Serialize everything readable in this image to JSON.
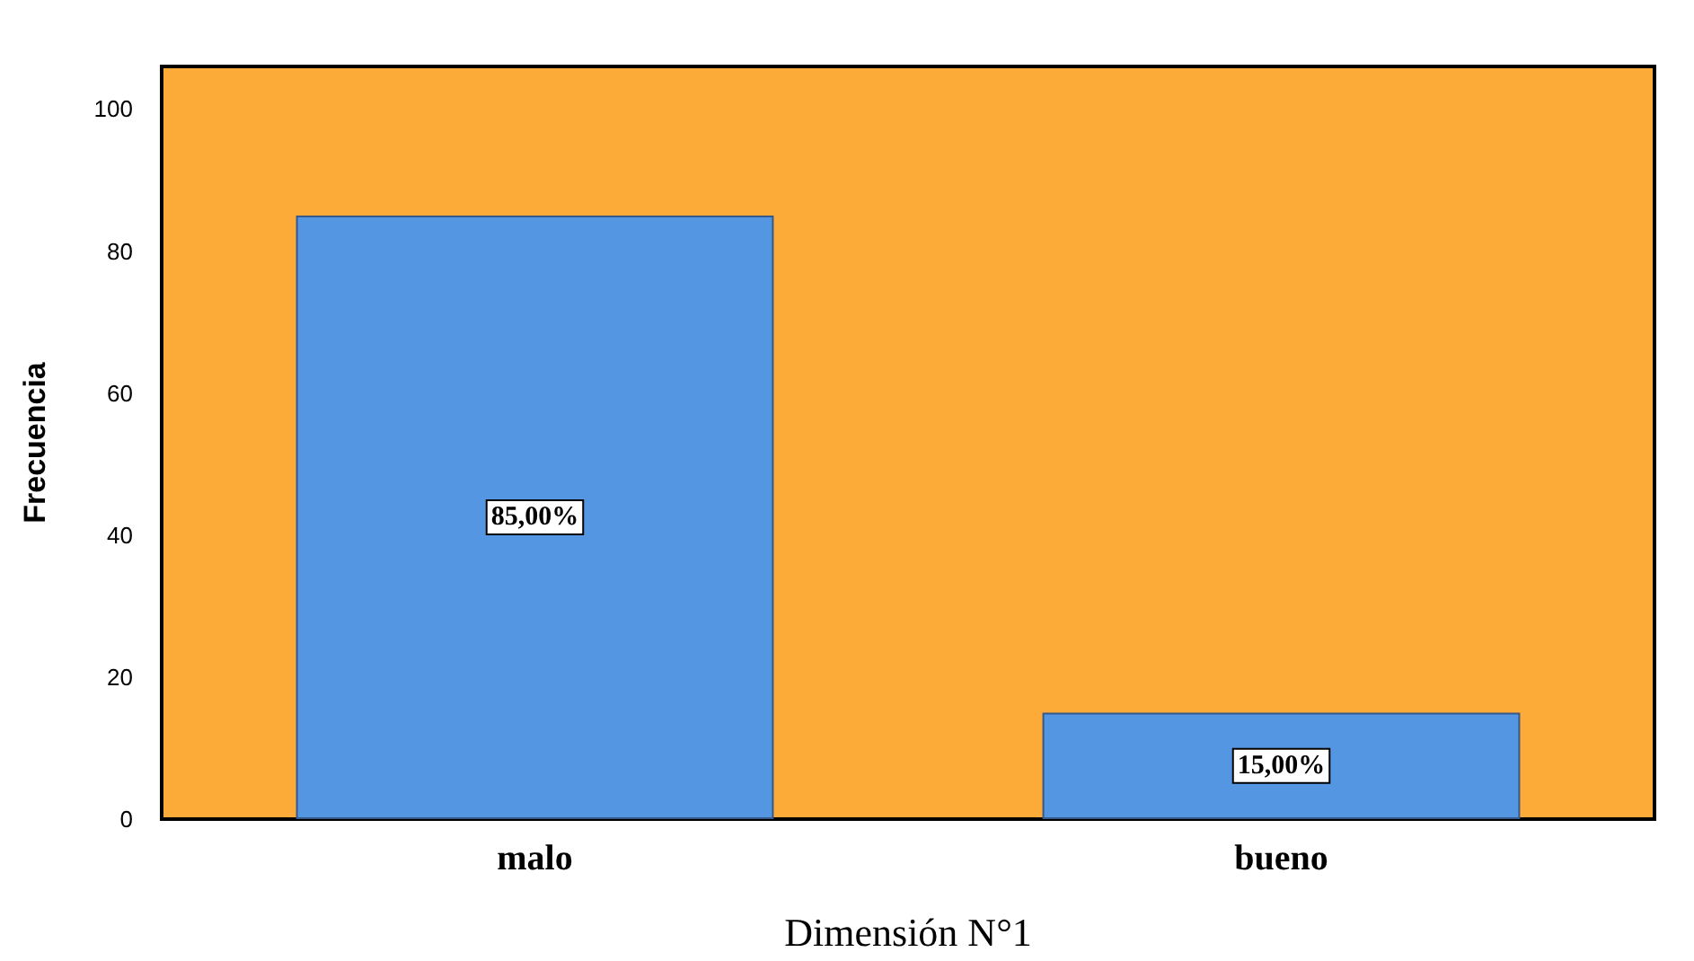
{
  "chart_data": {
    "type": "bar",
    "xlabel": "Dimensión N°1",
    "ylabel": "Frecuencia",
    "categories": [
      "malo",
      "bueno"
    ],
    "values": [
      85,
      15
    ],
    "color": "#5596e3",
    "value_labels": [
      "85,00%",
      "15,00%"
    ],
    "ylim": [
      0,
      106
    ],
    "yticks": [
      0,
      20,
      40,
      60,
      80,
      100
    ]
  }
}
